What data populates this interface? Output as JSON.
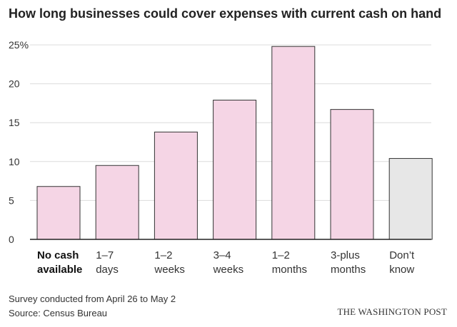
{
  "chart_data": {
    "type": "bar",
    "title": "How long businesses could cover expenses with current cash on hand",
    "categories": [
      [
        "No cash",
        "available"
      ],
      [
        "1–7",
        "days"
      ],
      [
        "1–2",
        "weeks"
      ],
      [
        "3–4",
        "weeks"
      ],
      [
        "1–2",
        "months"
      ],
      [
        "3-plus",
        "months"
      ],
      [
        "Don’t",
        "know"
      ]
    ],
    "values": [
      6.8,
      9.5,
      13.8,
      17.9,
      24.8,
      16.7,
      10.4
    ],
    "ylim": [
      0,
      25
    ],
    "yticks": [
      "0",
      "5",
      "10",
      "15",
      "20",
      "25%"
    ],
    "ytick_values": [
      0,
      5,
      10,
      15,
      20,
      25
    ],
    "grid": true,
    "colors": {
      "bar": "#f5d5e5",
      "bar_dont_know": "#e7e7e7",
      "bar_stroke": "#333333",
      "grid": "#dcdcdc",
      "axis": "#222222"
    },
    "bold_category_index": 0
  },
  "footer": {
    "note": "Survey conducted from April 26 to May 2",
    "source": "Source: Census Bureau",
    "credit": "THE WASHINGTON POST"
  }
}
